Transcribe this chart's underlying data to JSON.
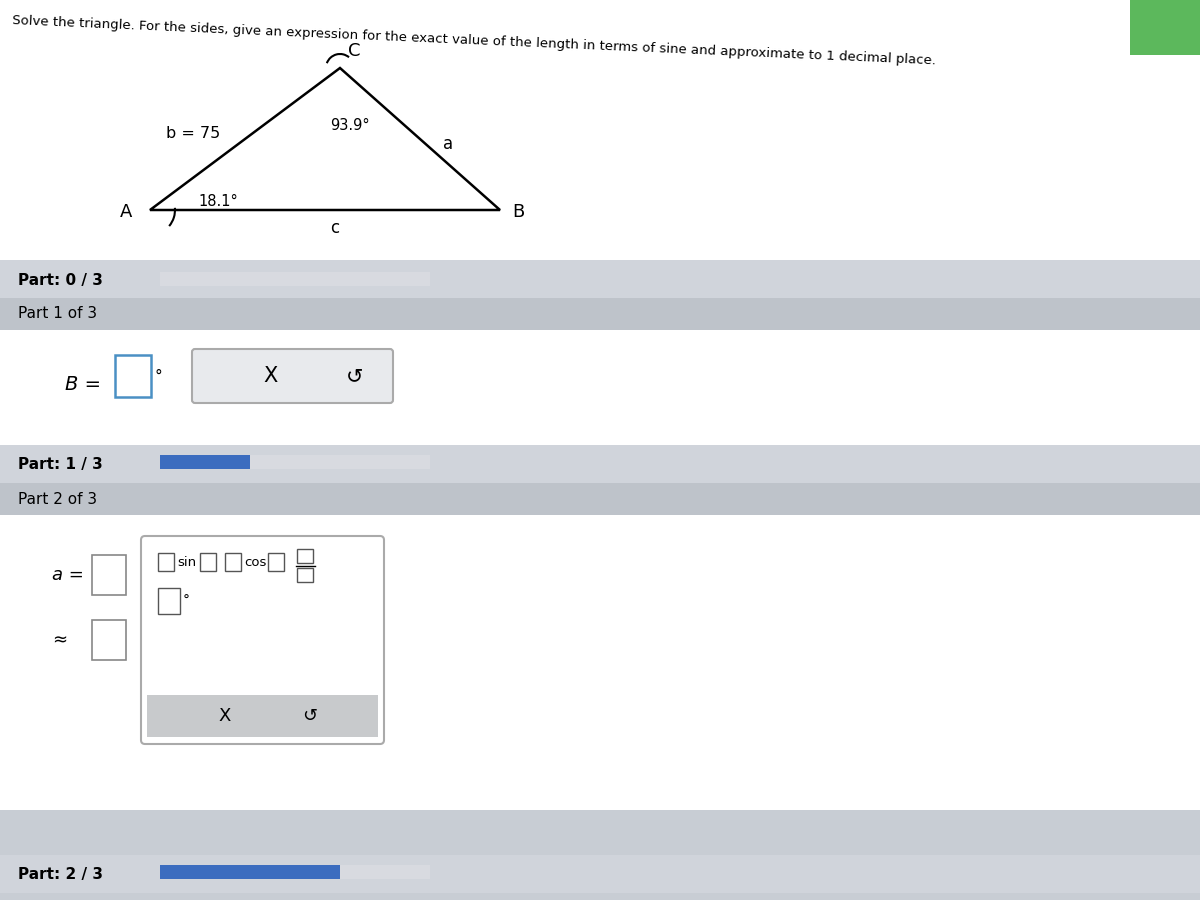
{
  "title": "Solve the triangle. For the sides, give an expression for the exact value of the length in terms of sine and approximate to 1 decimal place.",
  "bg_color": "#c8cdd4",
  "white_bg": "#ffffff",
  "panel_bg": "#d0d4db",
  "header_bg": "#bec3ca",
  "progress_color": "#3b6cbf",
  "progress_bg": "#d8dae0",
  "tri_A": [
    0.145,
    0.72
  ],
  "tri_C": [
    0.335,
    0.895
  ],
  "tri_B": [
    0.495,
    0.72
  ],
  "b_label": "b = 75",
  "angle_A_label": "18.1°",
  "angle_C_label": "93.9°",
  "side_a_label": "a",
  "side_c_label": "c",
  "vertex_A": "A",
  "vertex_B": "B",
  "vertex_C": "C",
  "part0_label": "Part: 0 / 3",
  "part1_header": "Part 1 of 3",
  "part1_label": "B =",
  "part1_1_3": "Part: 1 / 3",
  "part2_header": "Part 2 of 3",
  "part2_a": "a =",
  "part2_approx": "≈",
  "part3_label": "Part: 2 / 3"
}
